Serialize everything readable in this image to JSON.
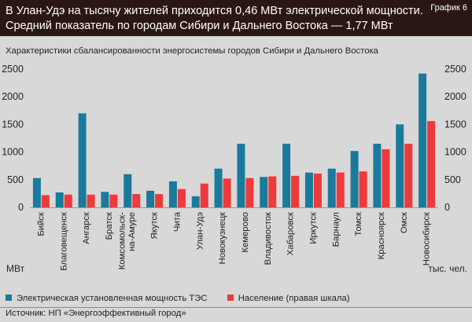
{
  "header": {
    "title_line1": "В Улан-Удэ на тысячу жителей приходится 0,46 МВт электрической мощности.",
    "title_line2": "Средний показатель по городам Сибири и Дальнего Востока — 1,77 МВт",
    "badge": "График 6"
  },
  "subtitle": "Характеристики сбалансированности энергосистемы городов Сибири и Дальнего Востока",
  "source": "Источник: НП «Энергоэффективный город»",
  "colors": {
    "series1": "#1a7a9c",
    "series2": "#ee3a3a",
    "header_bg": "#2a1714",
    "page_bg": "#d8d8d8"
  },
  "chart_data": {
    "type": "bar",
    "categories": [
      "Бийск",
      "Благовещенск",
      "Ангарск",
      "Братск",
      "Комсомольск-\nна-Амуре",
      "Якутск",
      "Чита",
      "Улан-Удэ",
      "Новокузнецк",
      "Кемерово",
      "Владивосток",
      "Хабаровск",
      "Иркутск",
      "Барнаул",
      "Томск",
      "Красноярск",
      "Омск",
      "Новосибирск"
    ],
    "series": [
      {
        "name": "Электрическая установленная мощность ТЭС",
        "axis": "left",
        "values": [
          530,
          270,
          1700,
          280,
          600,
          300,
          470,
          200,
          700,
          1150,
          550,
          1150,
          630,
          700,
          1020,
          1150,
          1500,
          2420
        ]
      },
      {
        "name": "Население (правая шкала)",
        "axis": "right",
        "values": [
          220,
          230,
          230,
          230,
          240,
          240,
          330,
          430,
          520,
          530,
          560,
          570,
          610,
          630,
          650,
          1050,
          1150,
          1560
        ]
      }
    ],
    "ylabel_left": "МВт",
    "ylabel_right": "тыс. чел.",
    "ylim_left": [
      0,
      2500
    ],
    "ylim_right": [
      0,
      2500
    ],
    "yticks": [
      0,
      500,
      1000,
      1500,
      2000,
      2500
    ],
    "grid": false,
    "legend_position": "bottom-left"
  }
}
